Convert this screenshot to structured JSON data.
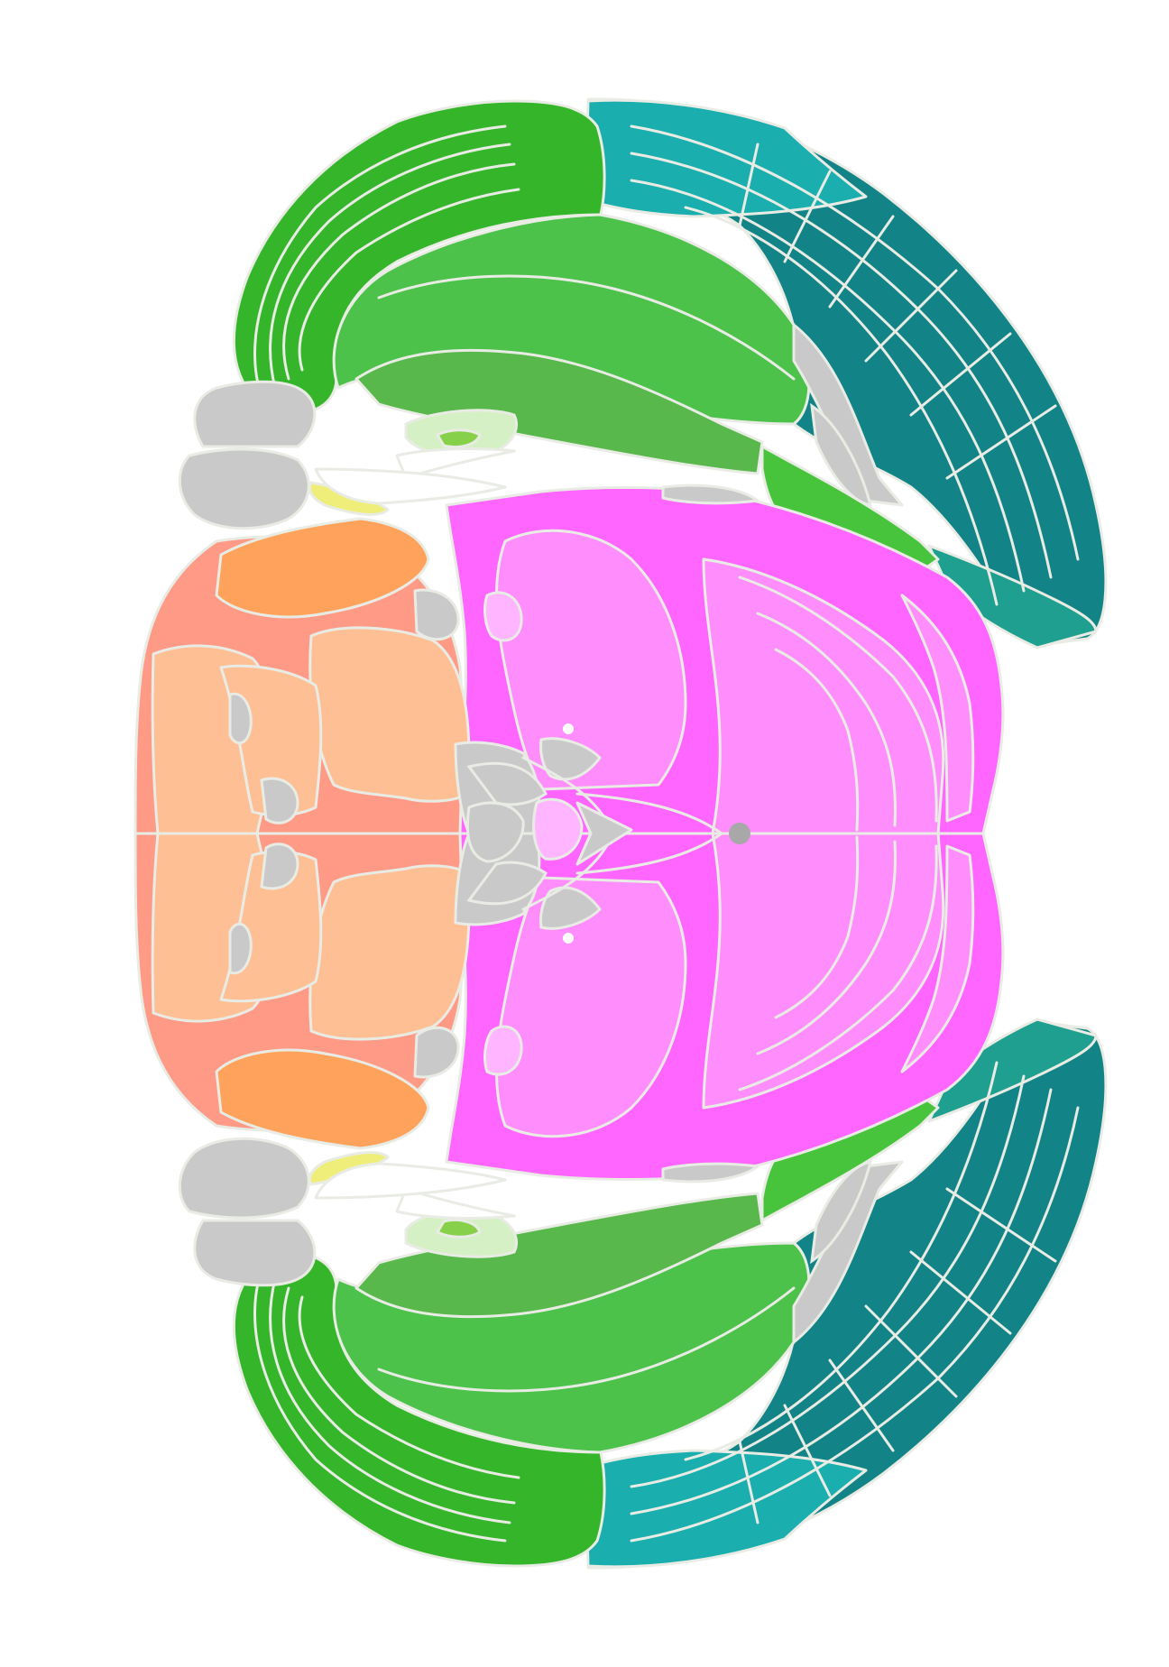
{
  "figure": {
    "background": "#ffffff",
    "boundary_color": "#e9ece4",
    "palette": {
      "cortex_green": "#35b52a",
      "striatum_green": "#4cc24a",
      "striatum_green_dark": "#58b84c",
      "pallidum_green": "#48c43c",
      "light_green": "#d6f0c6",
      "bright_green": "#86d04a",
      "isocortex_teal": "#128487",
      "teal_light": "#1aaeae",
      "teal_mid": "#1f9f90",
      "thalamus_magenta": "#ff66ff",
      "thalamus_pink": "#ff8dfb",
      "pink_light": "#ffb5ff",
      "hindbrain_salmon": "#ff9a86",
      "pons_peach": "#ffbf94",
      "medulla_orange": "#ffa35c",
      "fiber_gray": "#c9c9c9",
      "ventricle_gray": "#a8a8a8",
      "yellow": "#f0ee7a"
    }
  }
}
